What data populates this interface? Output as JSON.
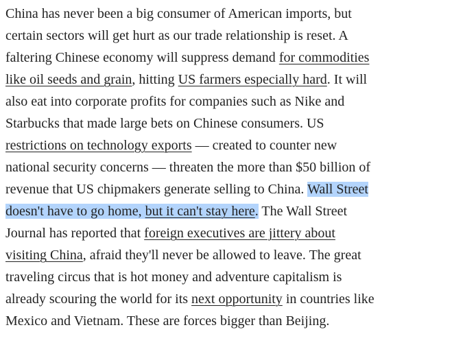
{
  "paragraph": {
    "lines": [
      [
        {
          "text": "China has never been a big consumer of American imports, but"
        }
      ],
      [
        {
          "text": "certain sectors will get hurt as our trade relationship is reset. A"
        }
      ],
      [
        {
          "text": "faltering Chinese economy will suppress demand "
        },
        {
          "text": "for commodities",
          "link": true
        }
      ],
      [
        {
          "text": "like oil seeds and grain",
          "link": true
        },
        {
          "text": ", hitting "
        },
        {
          "text": "US farmers especially hard",
          "link": true
        },
        {
          "text": ". It will"
        }
      ],
      [
        {
          "text": "also eat into corporate profits for companies such as Nike and"
        }
      ],
      [
        {
          "text": "Starbucks that made large bets on Chinese consumers. US"
        }
      ],
      [
        {
          "text": "restrictions on technology exports",
          "link": true
        },
        {
          "text": " — created to counter new"
        }
      ],
      [
        {
          "text": "national security concerns — threaten the more than $50 billion of"
        }
      ],
      [
        {
          "text": "revenue that US chipmakers generate selling to China. "
        },
        {
          "text": "Wall Street",
          "highlight": true
        }
      ],
      [
        {
          "text": "doesn't have to go home, ",
          "highlight": true
        },
        {
          "text": "but it can't stay here",
          "link": true,
          "highlight": true
        },
        {
          "text": ".",
          "highlight": true
        },
        {
          "text": " The Wall Street"
        }
      ],
      [
        {
          "text": "Journal has reported that "
        },
        {
          "text": "foreign executives are jittery about",
          "link": true
        }
      ],
      [
        {
          "text": "visiting China",
          "link": true
        },
        {
          "text": ", afraid they'll never be allowed to leave. The great"
        }
      ],
      [
        {
          "text": "traveling circus that is hot money and adventure capitalism is"
        }
      ],
      [
        {
          "text": "already scouring the world for its "
        },
        {
          "text": "next opportunity",
          "link": true
        },
        {
          "text": " in countries like"
        }
      ],
      [
        {
          "text": "Mexico and Vietnam. These are forces bigger than Beijing."
        }
      ]
    ]
  }
}
